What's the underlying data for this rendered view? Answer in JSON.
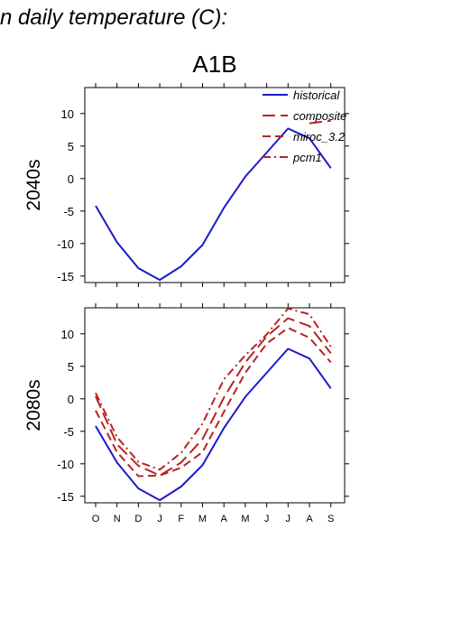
{
  "figure": {
    "title": "n daily temperature (C):",
    "scenario": "A1B"
  },
  "chart_data": [
    {
      "type": "line",
      "row_label": "2040s",
      "categories": [
        "O",
        "N",
        "D",
        "J",
        "F",
        "M",
        "A",
        "M",
        "J",
        "J",
        "A",
        "S"
      ],
      "ylim": [
        -16,
        14
      ],
      "yticks": [
        -15,
        -10,
        -5,
        0,
        5,
        10
      ],
      "legend": {
        "placement": "top-right"
      },
      "series": [
        {
          "name": "historical",
          "color": "#1a1acc",
          "dash": "solid",
          "values": [
            -4.2,
            -9.8,
            -13.8,
            -15.6,
            -13.5,
            -10.2,
            -4.5,
            0.3,
            4.0,
            7.7,
            6.2,
            1.6
          ]
        },
        {
          "name": "composite",
          "color": "#bb2222",
          "dash": "long-dash",
          "values": [
            null,
            null,
            null,
            null,
            null,
            null,
            null,
            null,
            null,
            null,
            8.5,
            8.9
          ]
        },
        {
          "name": "miroc_3.2",
          "color": "#bb2222",
          "dash": "dash",
          "values": [
            null,
            null,
            null,
            null,
            null,
            null,
            null,
            null,
            null,
            null,
            null,
            null
          ]
        },
        {
          "name": "pcm1",
          "color": "#bb2222",
          "dash": "dash-dot",
          "values": [
            null,
            null,
            null,
            null,
            null,
            null,
            null,
            null,
            null,
            null,
            null,
            null
          ]
        }
      ]
    },
    {
      "type": "line",
      "row_label": "2080s",
      "categories": [
        "O",
        "N",
        "D",
        "J",
        "F",
        "M",
        "A",
        "M",
        "J",
        "J",
        "A",
        "S"
      ],
      "ylim": [
        -16,
        14
      ],
      "yticks": [
        -15,
        -10,
        -5,
        0,
        5,
        10
      ],
      "series": [
        {
          "name": "historical",
          "color": "#1a1acc",
          "dash": "solid",
          "values": [
            -4.2,
            -9.8,
            -13.8,
            -15.6,
            -13.5,
            -10.2,
            -4.5,
            0.3,
            4.0,
            7.7,
            6.2,
            1.6
          ]
        },
        {
          "name": "composite",
          "color": "#bb2222",
          "dash": "long-dash",
          "values": [
            0.4,
            -7.0,
            -10.3,
            -11.8,
            -9.8,
            -6.2,
            0.2,
            5.6,
            9.6,
            12.4,
            11.2,
            7.0
          ]
        },
        {
          "name": "miroc_3.2",
          "color": "#bb2222",
          "dash": "dash",
          "values": [
            -1.8,
            -8.2,
            -11.9,
            -11.8,
            -10.6,
            -8.2,
            -2.0,
            4.0,
            8.5,
            10.9,
            9.4,
            5.6
          ]
        },
        {
          "name": "pcm1",
          "color": "#bb2222",
          "dash": "dash-dot",
          "values": [
            0.9,
            -5.9,
            -9.7,
            -10.9,
            -8.3,
            -3.8,
            3.0,
            6.7,
            9.9,
            13.9,
            13.0,
            8.0
          ]
        }
      ]
    }
  ]
}
